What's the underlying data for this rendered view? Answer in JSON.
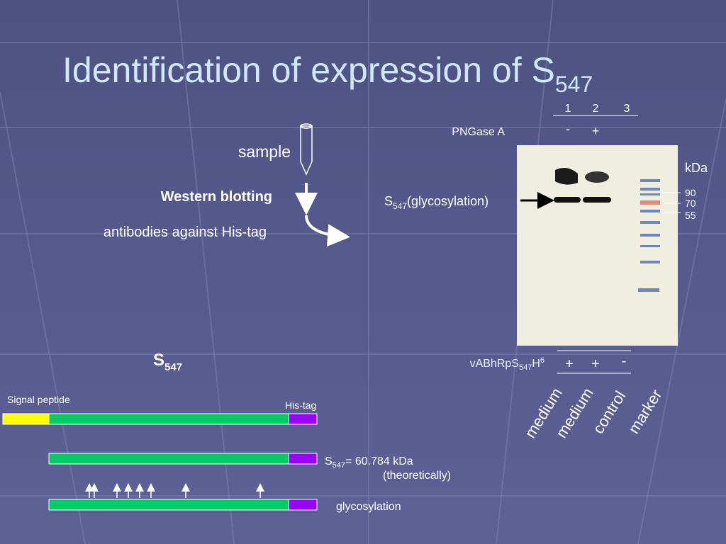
{
  "title": {
    "text": "Identification of expression of S",
    "subscript": "547"
  },
  "workflow": {
    "sample": "sample",
    "method": "Western blotting",
    "antibody": "antibodies against His-tag"
  },
  "gel": {
    "lanes": [
      "1",
      "2",
      "3"
    ],
    "pngase": {
      "label": "PNGase A",
      "values": [
        "-",
        "+"
      ]
    },
    "kda_label": "kDa",
    "markers": [
      "90",
      "70",
      "55"
    ],
    "band_label": {
      "text": "S",
      "subscript": "547",
      "suffix": "(glycosylation)"
    },
    "construct": {
      "text": "vABhRpS",
      "subscript": "547",
      "h": "H",
      "superscript": "6",
      "values": [
        "+",
        "+",
        "-"
      ]
    },
    "lane_names": [
      "medium",
      "medium",
      "control",
      "marker"
    ]
  },
  "construct_diagram": {
    "name": {
      "text": "S",
      "subscript": "547"
    },
    "signal_peptide": "Signal peptide",
    "his_tag": "His-tag",
    "mass": {
      "text": "S",
      "subscript": "547",
      "value": "= 60.784 kDa",
      "note": "(theoretically)"
    },
    "glycosylation": "glycosylation"
  }
}
